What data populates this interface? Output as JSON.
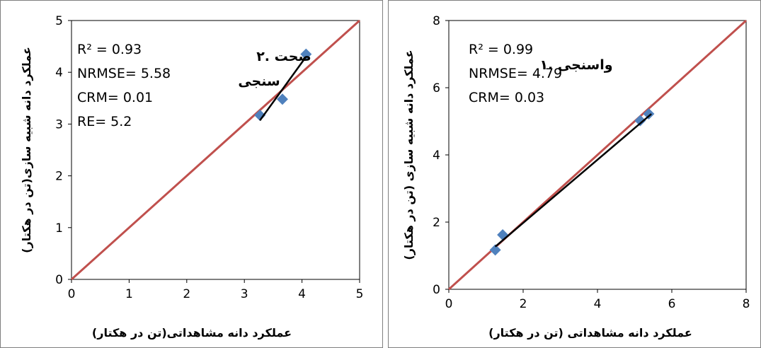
{
  "chart_data": [
    {
      "type": "scatter",
      "title": "۲. صحت سنجی",
      "xlabel": "عملکرد دانه مشاهداتی(تن در هکتار)",
      "ylabel": "عملکرد دانه شبیه سازی(تن در هکتار)",
      "xlim": [
        0,
        5
      ],
      "ylim": [
        0,
        5
      ],
      "xticks": [
        "0",
        "1",
        "2",
        "3",
        "4",
        "5"
      ],
      "yticks": [
        "0",
        "1",
        "2",
        "3",
        "4",
        "5"
      ],
      "points": [
        [
          3.27,
          3.17
        ],
        [
          3.66,
          3.48
        ],
        [
          4.07,
          4.35
        ]
      ],
      "trendline": [
        [
          3.27,
          3.07
        ],
        [
          4.07,
          4.3
        ]
      ],
      "reference_line": [
        [
          0,
          0
        ],
        [
          5,
          5
        ]
      ],
      "stats": [
        "R² = 0.93",
        "NRMSE= 5.58",
        "CRM= 0.01",
        "RE= 5.2"
      ],
      "colors": {
        "points": "#4f81bd",
        "reference": "#c0504d",
        "trend": "#000000"
      }
    },
    {
      "type": "scatter",
      "title": "۱. واسنجی",
      "xlabel": "عملکرد دانه مشاهداتی (تن در هکتار)",
      "ylabel": "عملکرد دانه شبیه سازی (تن در هکتار)",
      "xlim": [
        0,
        8
      ],
      "ylim": [
        0,
        8
      ],
      "xticks": [
        "0",
        "2",
        "4",
        "6",
        "8"
      ],
      "yticks": [
        "0",
        "2",
        "4",
        "6",
        "8"
      ],
      "points": [
        [
          1.25,
          1.17
        ],
        [
          1.45,
          1.62
        ],
        [
          5.15,
          5.02
        ],
        [
          5.38,
          5.22
        ]
      ],
      "trendline": [
        [
          1.25,
          1.27
        ],
        [
          5.45,
          5.22
        ]
      ],
      "reference_line": [
        [
          0,
          0
        ],
        [
          8,
          8
        ]
      ],
      "stats": [
        "R² = 0.99",
        "NRMSE= 4.79",
        "CRM= 0.03"
      ],
      "colors": {
        "points": "#4f81bd",
        "reference": "#c0504d",
        "trend": "#000000"
      }
    }
  ]
}
